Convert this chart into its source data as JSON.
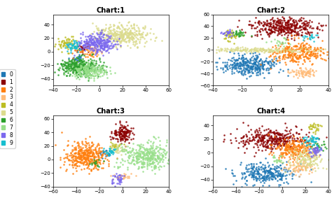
{
  "chart_titles": [
    "Chart:1",
    "Chart:2",
    "Chart:3",
    "Chart:4"
  ],
  "colors": [
    "#1f77b4",
    "#d62728",
    "#ff7f0e",
    "#ffbb78",
    "#bcbd22",
    "#dbdb8d",
    "#2ca02c",
    "#98df8a",
    "#9467bd",
    "#17becf"
  ],
  "color_labels": [
    "0",
    "1",
    "2",
    "3",
    "4",
    "5",
    "6",
    "7",
    "8",
    "9"
  ],
  "background": "#ffffff"
}
